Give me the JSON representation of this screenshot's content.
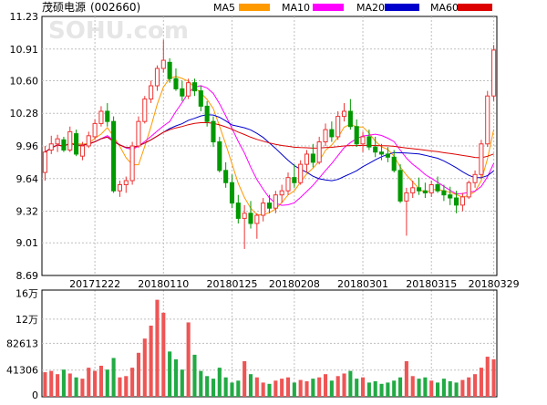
{
  "header": {
    "stock_name": "茂硕电源",
    "stock_code": "(002660)",
    "watermark": "SOHU.com"
  },
  "legend": [
    {
      "label": "MA5",
      "color": "#ff9900"
    },
    {
      "label": "MA10",
      "color": "#ff00ff"
    },
    {
      "label": "MA20",
      "color": "#0000cc"
    },
    {
      "label": "MA60",
      "color": "#dd0000"
    }
  ],
  "colors": {
    "up": "#ee3333",
    "down": "#009900",
    "grid": "#bfbfbf",
    "axis": "#000000",
    "volume_up": "#ee5555",
    "volume_down": "#22aa44"
  },
  "chart_data": [
    {
      "type": "candlestick",
      "title": "茂硕电源(002660)",
      "ylim": [
        8.69,
        11.23
      ],
      "yticks": [
        "11.23",
        "10.91",
        "10.60",
        "10.28",
        "9.96",
        "9.64",
        "9.32",
        "9.01",
        "8.69"
      ],
      "x_labels": [
        "20171222",
        "20180110",
        "20180125",
        "20180208",
        "20180301",
        "20180315",
        "20180329"
      ],
      "x_label_index": [
        8,
        19,
        30,
        40,
        51,
        62,
        72
      ],
      "grid": true,
      "series_names": [
        "MA5",
        "MA10",
        "MA20",
        "MA60"
      ],
      "ohlc": [
        [
          9.7,
          9.96,
          9.62,
          9.9
        ],
        [
          9.92,
          10.06,
          9.88,
          9.98
        ],
        [
          9.98,
          10.07,
          9.9,
          10.03
        ],
        [
          10.02,
          10.05,
          9.9,
          9.92
        ],
        [
          9.92,
          10.15,
          9.9,
          10.1
        ],
        [
          10.08,
          10.12,
          9.86,
          9.88
        ],
        [
          9.86,
          10.0,
          9.82,
          9.96
        ],
        [
          9.96,
          10.1,
          9.94,
          10.06
        ],
        [
          10.05,
          10.22,
          10.02,
          10.18
        ],
        [
          10.18,
          10.35,
          10.15,
          10.3
        ],
        [
          10.3,
          10.38,
          10.15,
          10.2
        ],
        [
          10.2,
          10.25,
          9.5,
          9.52
        ],
        [
          9.52,
          9.62,
          9.46,
          9.58
        ],
        [
          9.58,
          9.66,
          9.5,
          9.62
        ],
        [
          9.62,
          10.0,
          9.58,
          9.96
        ],
        [
          9.96,
          10.25,
          9.94,
          10.2
        ],
        [
          10.2,
          10.45,
          10.18,
          10.42
        ],
        [
          10.42,
          10.6,
          10.38,
          10.55
        ],
        [
          10.55,
          10.75,
          10.5,
          10.72
        ],
        [
          10.72,
          11.0,
          10.68,
          10.8
        ],
        [
          10.78,
          10.82,
          10.58,
          10.62
        ],
        [
          10.62,
          10.72,
          10.5,
          10.52
        ],
        [
          10.52,
          10.6,
          10.4,
          10.45
        ],
        [
          10.45,
          10.62,
          10.42,
          10.58
        ],
        [
          10.58,
          10.62,
          10.45,
          10.5
        ],
        [
          10.5,
          10.55,
          10.3,
          10.35
        ],
        [
          10.35,
          10.4,
          10.15,
          10.2
        ],
        [
          10.2,
          10.25,
          9.95,
          10.0
        ],
        [
          10.0,
          10.05,
          9.7,
          9.72
        ],
        [
          9.72,
          9.8,
          9.55,
          9.6
        ],
        [
          9.6,
          9.68,
          9.35,
          9.4
        ],
        [
          9.4,
          9.48,
          9.2,
          9.25
        ],
        [
          9.25,
          9.38,
          8.95,
          9.3
        ],
        [
          9.3,
          9.42,
          9.15,
          9.2
        ],
        [
          9.2,
          9.3,
          9.05,
          9.28
        ],
        [
          9.28,
          9.45,
          9.22,
          9.4
        ],
        [
          9.4,
          9.48,
          9.3,
          9.35
        ],
        [
          9.35,
          9.52,
          9.3,
          9.48
        ],
        [
          9.48,
          9.58,
          9.4,
          9.52
        ],
        [
          9.52,
          9.7,
          9.48,
          9.65
        ],
        [
          9.65,
          9.78,
          9.55,
          9.6
        ],
        [
          9.6,
          9.82,
          9.58,
          9.78
        ],
        [
          9.78,
          9.92,
          9.7,
          9.88
        ],
        [
          9.88,
          9.98,
          9.75,
          9.8
        ],
        [
          9.8,
          10.05,
          9.78,
          10.0
        ],
        [
          10.0,
          10.18,
          9.96,
          10.12
        ],
        [
          10.12,
          10.2,
          10.0,
          10.05
        ],
        [
          10.05,
          10.3,
          10.02,
          10.25
        ],
        [
          10.25,
          10.38,
          10.2,
          10.3
        ],
        [
          10.3,
          10.42,
          10.12,
          10.15
        ],
        [
          10.15,
          10.22,
          9.95,
          9.98
        ],
        [
          9.98,
          10.1,
          9.9,
          10.05
        ],
        [
          10.05,
          10.12,
          9.92,
          9.95
        ],
        [
          9.95,
          10.05,
          9.85,
          9.9
        ],
        [
          9.9,
          9.98,
          9.82,
          9.88
        ],
        [
          9.88,
          9.95,
          9.8,
          9.85
        ],
        [
          9.85,
          9.92,
          9.7,
          9.72
        ],
        [
          9.72,
          9.78,
          9.4,
          9.42
        ],
        [
          9.42,
          9.55,
          9.08,
          9.5
        ],
        [
          9.5,
          9.62,
          9.45,
          9.55
        ],
        [
          9.55,
          9.65,
          9.48,
          9.52
        ],
        [
          9.52,
          9.6,
          9.45,
          9.5
        ],
        [
          9.5,
          9.62,
          9.46,
          9.58
        ],
        [
          9.58,
          9.66,
          9.5,
          9.52
        ],
        [
          9.52,
          9.58,
          9.42,
          9.48
        ],
        [
          9.48,
          9.56,
          9.38,
          9.45
        ],
        [
          9.45,
          9.52,
          9.3,
          9.38
        ],
        [
          9.38,
          9.5,
          9.32,
          9.46
        ],
        [
          9.46,
          9.62,
          9.44,
          9.6
        ],
        [
          9.6,
          9.72,
          9.55,
          9.68
        ],
        [
          9.68,
          10.02,
          9.64,
          9.98
        ],
        [
          9.98,
          10.5,
          9.95,
          10.45
        ],
        [
          10.45,
          10.95,
          10.4,
          10.9
        ]
      ],
      "volume": {
        "ylim": [
          0,
          165000
        ],
        "yticks": [
          "16万",
          "12万",
          "82613",
          "41306",
          "0"
        ],
        "values": [
          38000,
          40000,
          35000,
          42000,
          36000,
          30000,
          28000,
          45000,
          40000,
          48000,
          42000,
          60000,
          30000,
          32000,
          45000,
          68000,
          90000,
          110000,
          150000,
          130000,
          70000,
          58000,
          42000,
          115000,
          65000,
          40000,
          32000,
          28000,
          45000,
          30000,
          22000,
          25000,
          55000,
          35000,
          30000,
          22000,
          20000,
          25000,
          28000,
          30000,
          22000,
          26000,
          24000,
          28000,
          30000,
          35000,
          25000,
          32000,
          36000,
          40000,
          28000,
          30000,
          22000,
          24000,
          20000,
          22000,
          25000,
          30000,
          55000,
          32000,
          28000,
          30000,
          25000,
          22000,
          28000,
          24000,
          22000,
          26000,
          30000,
          35000,
          45000,
          62000,
          58000
        ]
      }
    }
  ]
}
